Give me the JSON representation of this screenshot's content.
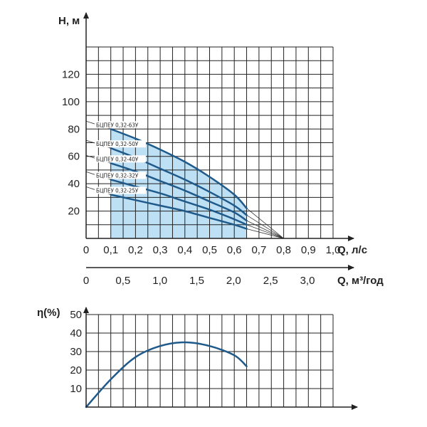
{
  "colors": {
    "curve": "#1f5a8a",
    "fill": "#bde0f5",
    "grid": "#222222",
    "axis": "#222222"
  },
  "chart_data": [
    {
      "type": "line",
      "ylabel": "Н, м",
      "xlabel": "Q, л/с",
      "xlabel2": "Q, м³/год",
      "x_ticks": [
        "0",
        "0,1",
        "0,2",
        "0,3",
        "0,4",
        "0,5",
        "0,6",
        "0,7",
        "0,8",
        "0,9",
        "1,0"
      ],
      "x_tick_values": [
        0,
        0.1,
        0.2,
        0.3,
        0.4,
        0.5,
        0.6,
        0.7,
        0.8,
        0.9,
        1.0
      ],
      "x2_ticks": [
        "0",
        "0,5",
        "1,0",
        "1,5",
        "2,0",
        "2,5",
        "3,0"
      ],
      "x2_tick_values": [
        0,
        0.5,
        1.0,
        1.5,
        2.0,
        2.5,
        3.0
      ],
      "y_ticks": [
        "20",
        "40",
        "60",
        "80",
        "100",
        "120"
      ],
      "y_tick_values": [
        20,
        40,
        60,
        80,
        100,
        120
      ],
      "xlim": [
        0,
        1.0
      ],
      "ylim": [
        0,
        140
      ],
      "grid": true,
      "working_range": [
        0.1,
        0.65
      ],
      "shutoff_point": [
        0.8,
        0
      ],
      "series": [
        {
          "name": "БЦПЕУ 0,32-63У",
          "x": [
            0.1,
            0.2,
            0.3,
            0.4,
            0.5,
            0.6,
            0.65
          ],
          "y": [
            80,
            73,
            65,
            56,
            45,
            32,
            22
          ]
        },
        {
          "name": "БЦПЕУ 0,32-50У",
          "x": [
            0.1,
            0.2,
            0.3,
            0.4,
            0.5,
            0.6,
            0.65
          ],
          "y": [
            66,
            59,
            51,
            43,
            34,
            24,
            17
          ]
        },
        {
          "name": "БЦПЕУ 0,32-40У",
          "x": [
            0.1,
            0.2,
            0.3,
            0.4,
            0.5,
            0.6,
            0.65
          ],
          "y": [
            55,
            49,
            42,
            35,
            27,
            19,
            13
          ]
        },
        {
          "name": "БЦПЕУ 0,32-32У",
          "x": [
            0.1,
            0.2,
            0.3,
            0.4,
            0.5,
            0.6,
            0.65
          ],
          "y": [
            43,
            38,
            33,
            27,
            21,
            14,
            10
          ]
        },
        {
          "name": "БЦПЕУ 0,32-25У",
          "x": [
            0.1,
            0.2,
            0.3,
            0.4,
            0.5,
            0.6,
            0.65
          ],
          "y": [
            32,
            28,
            24,
            20,
            15,
            10,
            7
          ]
        }
      ]
    },
    {
      "type": "line",
      "ylabel": "η(%)",
      "y_ticks": [
        "10",
        "20",
        "30",
        "40",
        "50"
      ],
      "y_tick_values": [
        10,
        20,
        30,
        40,
        50
      ],
      "xlim": [
        0,
        1.0
      ],
      "ylim": [
        0,
        50
      ],
      "grid": true,
      "series": [
        {
          "x": [
            0,
            0.1,
            0.2,
            0.3,
            0.4,
            0.5,
            0.6,
            0.65
          ],
          "y": [
            0,
            15,
            27,
            33,
            35,
            33,
            28,
            22
          ]
        }
      ]
    }
  ]
}
